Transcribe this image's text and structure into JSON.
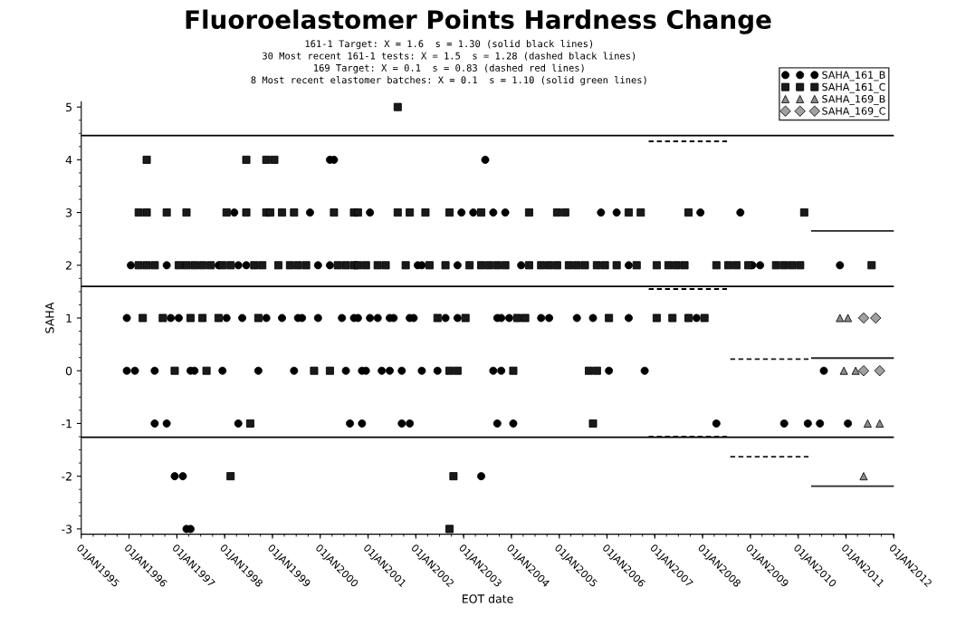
{
  "chart_data": {
    "type": "scatter",
    "title": "Fluoroelastomer Points Hardness Change",
    "annotations": [
      "161-1 Target: X = 1.6  s = 1.30 (solid black lines)",
      "30 Most recent 161-1 tests: X = 1.5  s = 1.28 (dashed black lines)",
      "169 Target: X = 0.1  s = 0.83 (dashed red lines)",
      "8 Most recent elastomer batches: X = 0.1  s = 1.10 (solid green lines)"
    ],
    "xlabel": "EOT date",
    "ylabel": "SAHA",
    "xlim": [
      "1995-01-01",
      "2012-01-01"
    ],
    "xticks": [
      {
        "value": "1995-01-01",
        "label": "01JAN1995"
      },
      {
        "value": "1996-01-01",
        "label": "01JAN1996"
      },
      {
        "value": "1997-01-01",
        "label": "01JAN1997"
      },
      {
        "value": "1998-01-01",
        "label": "01JAN1998"
      },
      {
        "value": "1999-01-01",
        "label": "01JAN1999"
      },
      {
        "value": "2000-01-01",
        "label": "01JAN2000"
      },
      {
        "value": "2001-01-01",
        "label": "01JAN2001"
      },
      {
        "value": "2002-01-01",
        "label": "01JAN2002"
      },
      {
        "value": "2003-01-01",
        "label": "01JAN2003"
      },
      {
        "value": "2004-01-01",
        "label": "01JAN2004"
      },
      {
        "value": "2005-01-01",
        "label": "01JAN2005"
      },
      {
        "value": "2006-01-01",
        "label": "01JAN2006"
      },
      {
        "value": "2007-01-01",
        "label": "01JAN2007"
      },
      {
        "value": "2008-01-01",
        "label": "01JAN2008"
      },
      {
        "value": "2009-01-01",
        "label": "01JAN2009"
      },
      {
        "value": "2010-01-01",
        "label": "01JAN2010"
      },
      {
        "value": "2011-01-01",
        "label": "01JAN2011"
      },
      {
        "value": "2012-01-01",
        "label": "01JAN2012"
      }
    ],
    "ylim": [
      -3.1,
      5.1
    ],
    "yticks": [
      -3,
      -2,
      -1,
      0,
      1,
      2,
      3,
      4,
      5
    ],
    "grid": false,
    "legend": "top right",
    "series": [
      {
        "name": "SAHA_161_B",
        "color": "#000000",
        "marker": "circle",
        "x": [
          "2000-03",
          "2000-04",
          "2003-06",
          "1998-03",
          "1999-10",
          "2001-01",
          "2002-12",
          "2003-03",
          "2003-08",
          "2003-11",
          "2005-11",
          "2006-03",
          "2007-12",
          "2008-10",
          "1996-01",
          "1996-10",
          "1997-11",
          "1998-04",
          "1998-06",
          "1999-12",
          "2000-03",
          "2002-01",
          "2002-02",
          "2002-11",
          "2004-03",
          "2006-06",
          "2009-01",
          "2009-03",
          "2010-11",
          "1995-12",
          "1996-11",
          "1997-01",
          "1998-01",
          "1998-05",
          "1998-11",
          "1999-03",
          "1999-07",
          "1999-08",
          "1999-12",
          "2000-06",
          "2000-09",
          "2000-10",
          "2001-01",
          "2001-03",
          "2001-06",
          "2001-07",
          "2001-11",
          "2001-12",
          "2002-08",
          "2002-11",
          "2003-09",
          "2003-10",
          "2003-12",
          "2004-08",
          "2004-10",
          "2005-05",
          "2005-09",
          "2006-06",
          "2007-11",
          "1995-12",
          "1996-02",
          "1996-07",
          "1997-04",
          "1997-05",
          "1997-12",
          "1998-09",
          "1999-06",
          "2000-07",
          "2000-11",
          "2000-12",
          "2001-04",
          "2001-06",
          "2001-09",
          "2002-02",
          "2002-06",
          "2003-08",
          "2003-10",
          "2006-01",
          "2006-10",
          "2010-07",
          "1996-07",
          "1996-10",
          "1998-04",
          "2000-08",
          "2000-11",
          "2001-09",
          "2001-11",
          "2003-09",
          "2004-01",
          "2008-04",
          "2009-09",
          "2010-03",
          "2010-06",
          "2011-01",
          "1996-12",
          "1997-02",
          "2003-05",
          "1997-03",
          "1997-04"
        ],
        "values": [
          4,
          4,
          4,
          3,
          3,
          3,
          3,
          3,
          3,
          3,
          3,
          3,
          3,
          3,
          2,
          2,
          2,
          2,
          2,
          2,
          2,
          2,
          2,
          2,
          2,
          2,
          2,
          2,
          2,
          1,
          1,
          1,
          1,
          1,
          1,
          1,
          1,
          1,
          1,
          1,
          1,
          1,
          1,
          1,
          1,
          1,
          1,
          1,
          1,
          1,
          1,
          1,
          1,
          1,
          1,
          1,
          1,
          1,
          1,
          0,
          0,
          0,
          0,
          0,
          0,
          0,
          0,
          0,
          0,
          0,
          0,
          0,
          0,
          0,
          0,
          0,
          0,
          0,
          0,
          0,
          -1,
          -1,
          -1,
          -1,
          -1,
          -1,
          -1,
          -1,
          -1,
          -1,
          -1,
          -1,
          -1,
          -1,
          -2,
          -2,
          -2,
          -3,
          -3
        ]
      },
      {
        "name": "SAHA_161_C",
        "color": "#1a1a1a",
        "marker": "square",
        "x": [
          "2001-08",
          "1996-05",
          "1998-06",
          "1998-11",
          "1999-01",
          "1996-03",
          "1996-05",
          "1996-10",
          "1997-03",
          "1998-01",
          "1998-06",
          "1998-11",
          "1998-12",
          "1999-03",
          "1999-06",
          "2000-04",
          "2000-09",
          "2000-10",
          "2001-08",
          "2001-11",
          "2002-03",
          "2002-09",
          "2003-05",
          "2004-05",
          "2004-12",
          "2005-02",
          "2006-06",
          "2006-09",
          "2007-09",
          "2010-02",
          "1996-03",
          "1996-05",
          "1996-07",
          "1997-01",
          "1997-03",
          "1997-05",
          "1997-07",
          "1997-09",
          "1997-12",
          "1998-02",
          "1998-08",
          "1998-10",
          "1999-02",
          "1999-05",
          "1999-07",
          "1999-09",
          "2000-05",
          "2000-07",
          "2000-09",
          "2000-10",
          "2000-12",
          "2001-03",
          "2001-05",
          "2001-10",
          "2002-04",
          "2002-08",
          "2003-02",
          "2003-05",
          "2003-07",
          "2003-09",
          "2003-11",
          "2004-05",
          "2004-08",
          "2004-10",
          "2004-12",
          "2005-03",
          "2005-05",
          "2005-07",
          "2005-10",
          "2005-12",
          "2006-03",
          "2006-08",
          "2007-01",
          "2007-04",
          "2007-06",
          "2007-08",
          "2008-04",
          "2008-07",
          "2008-09",
          "2008-12",
          "2009-07",
          "2009-09",
          "2009-11",
          "2010-01",
          "2011-07",
          "1996-04",
          "1996-09",
          "1997-04",
          "1997-07",
          "1997-11",
          "1998-09",
          "2002-06",
          "2003-01",
          "2004-02",
          "2004-04",
          "2006-01",
          "2007-01",
          "2007-05",
          "2007-09",
          "2008-01",
          "1996-12",
          "1997-08",
          "1999-11",
          "2000-03",
          "2002-09",
          "2002-11",
          "2004-01",
          "2005-08",
          "2005-10",
          "1998-07",
          "2005-09",
          "1998-02",
          "2002-10",
          "2002-09"
        ],
        "values": [
          5,
          4,
          4,
          4,
          4,
          3,
          3,
          3,
          3,
          3,
          3,
          3,
          3,
          3,
          3,
          3,
          3,
          3,
          3,
          3,
          3,
          3,
          3,
          3,
          3,
          3,
          3,
          3,
          3,
          3,
          2,
          2,
          2,
          2,
          2,
          2,
          2,
          2,
          2,
          2,
          2,
          2,
          2,
          2,
          2,
          2,
          2,
          2,
          2,
          2,
          2,
          2,
          2,
          2,
          2,
          2,
          2,
          2,
          2,
          2,
          2,
          2,
          2,
          2,
          2,
          2,
          2,
          2,
          2,
          2,
          2,
          2,
          2,
          2,
          2,
          2,
          2,
          2,
          2,
          2,
          2,
          2,
          2,
          2,
          2,
          1,
          1,
          1,
          1,
          1,
          1,
          1,
          1,
          1,
          1,
          1,
          1,
          1,
          1,
          1,
          0,
          0,
          0,
          0,
          0,
          0,
          0,
          0,
          0,
          -1,
          -1,
          -2,
          -2,
          -3
        ]
      },
      {
        "name": "SAHA_169_B",
        "color": "#8c8c8c",
        "marker": "triangle",
        "x": [
          "2010-11",
          "2011-01",
          "2010-12",
          "2011-03",
          "2011-06",
          "2011-09",
          "2011-05"
        ],
        "values": [
          1,
          1,
          0,
          0,
          -1,
          -1,
          -2
        ]
      },
      {
        "name": "SAHA_169_C",
        "color": "#a0a0a0",
        "marker": "diamond",
        "x": [
          "2011-05",
          "2011-08",
          "2011-05",
          "2011-09"
        ],
        "values": [
          1,
          1,
          0,
          0
        ]
      },
      {
        "type": "line",
        "color": "#000000",
        "line_style": "solid",
        "x": [
          "1995-01-01",
          "2012-01-01"
        ],
        "values": [
          4.46,
          4.46
        ]
      },
      {
        "type": "line",
        "color": "#000000",
        "line_style": "solid",
        "x": [
          "1995-01-01",
          "2012-01-01"
        ],
        "values": [
          1.6,
          1.6
        ]
      },
      {
        "type": "line",
        "color": "#000000",
        "line_style": "solid",
        "x": [
          "1995-01-01",
          "2012-01-01"
        ],
        "values": [
          -1.26,
          -1.26
        ]
      },
      {
        "type": "line",
        "color": "#000000",
        "line_style": "dashed",
        "x": [
          "2006-11-15",
          "2008-07-05"
        ],
        "values": [
          4.35,
          4.35
        ]
      },
      {
        "type": "line",
        "color": "#000000",
        "line_style": "dashed",
        "x": [
          "2006-11-15",
          "2008-07-05"
        ],
        "values": [
          1.55,
          1.55
        ]
      },
      {
        "type": "line",
        "color": "#000000",
        "line_style": "dashed",
        "x": [
          "2006-11-15",
          "2008-07-05"
        ],
        "values": [
          -1.25,
          -1.25
        ]
      },
      {
        "type": "line",
        "color": "#1a1a1a",
        "line_style": "dashed",
        "x": [
          "2008-07-30",
          "2010-03-20"
        ],
        "values": [
          0.22,
          0.22
        ]
      },
      {
        "type": "line",
        "color": "#1a1a1a",
        "line_style": "dashed",
        "x": [
          "2008-07-30",
          "2010-03-20"
        ],
        "values": [
          -1.63,
          -1.63
        ]
      },
      {
        "type": "line",
        "color": "#262626",
        "line_style": "solid",
        "x": [
          "2010-04-15",
          "2012-01-01"
        ],
        "values": [
          2.65,
          2.65
        ]
      },
      {
        "type": "line",
        "color": "#262626",
        "line_style": "solid",
        "x": [
          "2010-04-15",
          "2012-01-01"
        ],
        "values": [
          0.24,
          0.24
        ]
      },
      {
        "type": "line",
        "color": "#262626",
        "line_style": "solid",
        "x": [
          "2010-04-15",
          "2012-01-01"
        ],
        "values": [
          -2.19,
          -2.19
        ]
      }
    ]
  }
}
